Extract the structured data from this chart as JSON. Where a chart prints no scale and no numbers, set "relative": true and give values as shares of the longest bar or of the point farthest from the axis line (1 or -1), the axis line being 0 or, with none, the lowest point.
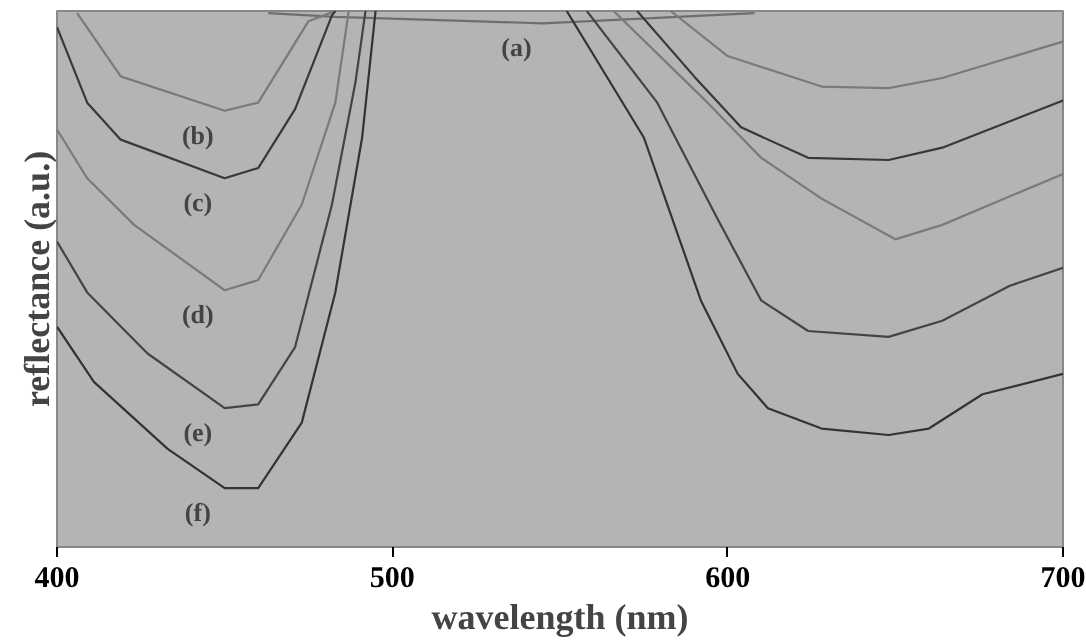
{
  "chart_data": {
    "type": "line",
    "relative": true,
    "xlabel": "wavelength (nm)",
    "ylabel": "reflectance (a.u.)",
    "xlim": [
      400,
      700
    ],
    "xticks": [
      400,
      500,
      600,
      700
    ],
    "tick_labels": "x",
    "grid": false,
    "legend": false,
    "marker": "none",
    "line_style": "solid",
    "series": [
      {
        "name": "(a)",
        "color": "#6e6e6e",
        "x": [
          463,
          483,
          545,
          585,
          608
        ],
        "values": [
          0.996,
          0.989,
          0.977,
          0.989,
          0.996
        ]
      },
      {
        "name": "(b)",
        "color": "#7a7a7a",
        "x": [
          406,
          419,
          450,
          460,
          475,
          483,
          520,
          583,
          600,
          628,
          648,
          664,
          700
        ],
        "values": [
          0.996,
          0.878,
          0.814,
          0.829,
          0.981,
          1.0,
          null,
          1.0,
          0.916,
          0.859,
          0.856,
          0.875,
          0.943
        ]
      },
      {
        "name": "(c)",
        "color": "#383838",
        "x": [
          400,
          409,
          419,
          450,
          460,
          471,
          482,
          483,
          530,
          573,
          590,
          604,
          624,
          648,
          664,
          700
        ],
        "values": [
          0.97,
          0.829,
          0.76,
          0.688,
          0.707,
          0.817,
          0.992,
          1.0,
          null,
          1.0,
          0.878,
          0.783,
          0.726,
          0.722,
          0.745,
          0.833
        ]
      },
      {
        "name": "(d)",
        "color": "#7a7a7a",
        "x": [
          400,
          409,
          423,
          450,
          460,
          473,
          483,
          487,
          530,
          566,
          594,
          610,
          628,
          650,
          664,
          700
        ],
        "values": [
          0.779,
          0.688,
          0.601,
          0.479,
          0.498,
          0.639,
          0.829,
          1.0,
          null,
          1.0,
          0.829,
          0.726,
          0.65,
          0.574,
          0.601,
          0.696
        ]
      },
      {
        "name": "(e)",
        "color": "#444444",
        "x": [
          400,
          409,
          427,
          450,
          460,
          471,
          482,
          489,
          492,
          530,
          558,
          579,
          597,
          610,
          624,
          648,
          664,
          684,
          700
        ],
        "values": [
          0.57,
          0.475,
          0.361,
          0.259,
          0.266,
          0.373,
          0.639,
          0.867,
          1.0,
          null,
          1.0,
          0.829,
          0.612,
          0.46,
          0.403,
          0.392,
          0.422,
          0.487,
          0.521
        ]
      },
      {
        "name": "(f)",
        "color": "#333333",
        "x": [
          400,
          411,
          433,
          450,
          460,
          473,
          483,
          491,
          495,
          530,
          552,
          575,
          592,
          603,
          612,
          628,
          648,
          660,
          676,
          700
        ],
        "values": [
          0.411,
          0.308,
          0.183,
          0.11,
          0.11,
          0.232,
          0.475,
          0.764,
          1.0,
          null,
          1.0,
          0.764,
          0.46,
          0.323,
          0.259,
          0.221,
          0.209,
          0.221,
          0.285,
          0.323
        ]
      }
    ]
  }
}
